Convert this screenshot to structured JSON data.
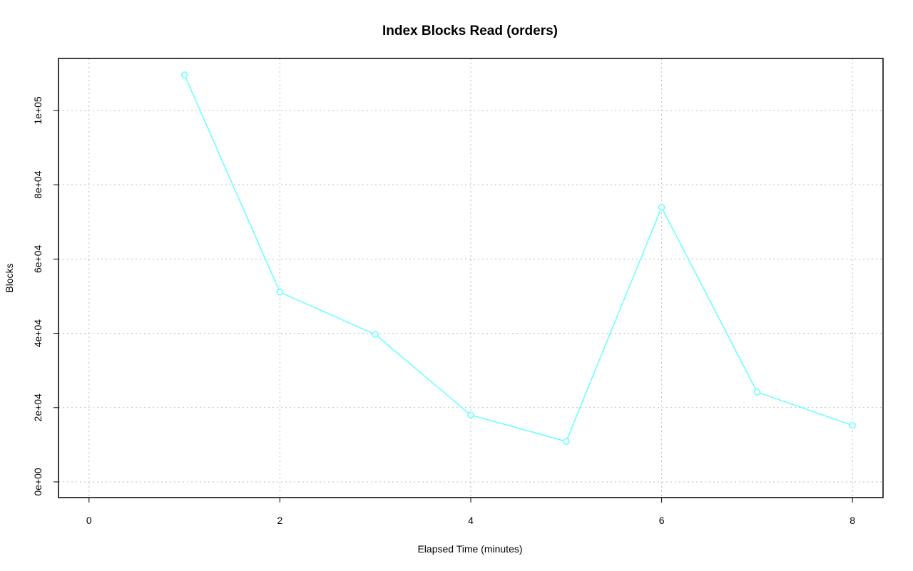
{
  "chart_data": {
    "type": "line",
    "title": "Index Blocks Read (orders)",
    "x_label": "Elapsed Time (minutes)",
    "y_label": "Blocks",
    "series": [
      {
        "color": "#66ffff",
        "x": [
          1,
          2,
          3,
          4,
          5,
          6,
          7,
          8
        ],
        "values": [
          109600,
          51100,
          39700,
          18000,
          10900,
          73900,
          24200,
          15200
        ]
      }
    ],
    "xlim": [
      -0.32,
      8.32
    ],
    "xticks": [
      0,
      2,
      4,
      6,
      8
    ],
    "ylim": [
      -4220,
      114000
    ],
    "yticks": [
      {
        "value": 0,
        "label": "0e+00"
      },
      {
        "value": 20000,
        "label": "2e+04"
      },
      {
        "value": 40000,
        "label": "4e+04"
      },
      {
        "value": 60000,
        "label": "6e+04"
      },
      {
        "value": 80000,
        "label": "8e+04"
      },
      {
        "value": 100000,
        "label": "1e+05"
      }
    ],
    "grid": true
  }
}
